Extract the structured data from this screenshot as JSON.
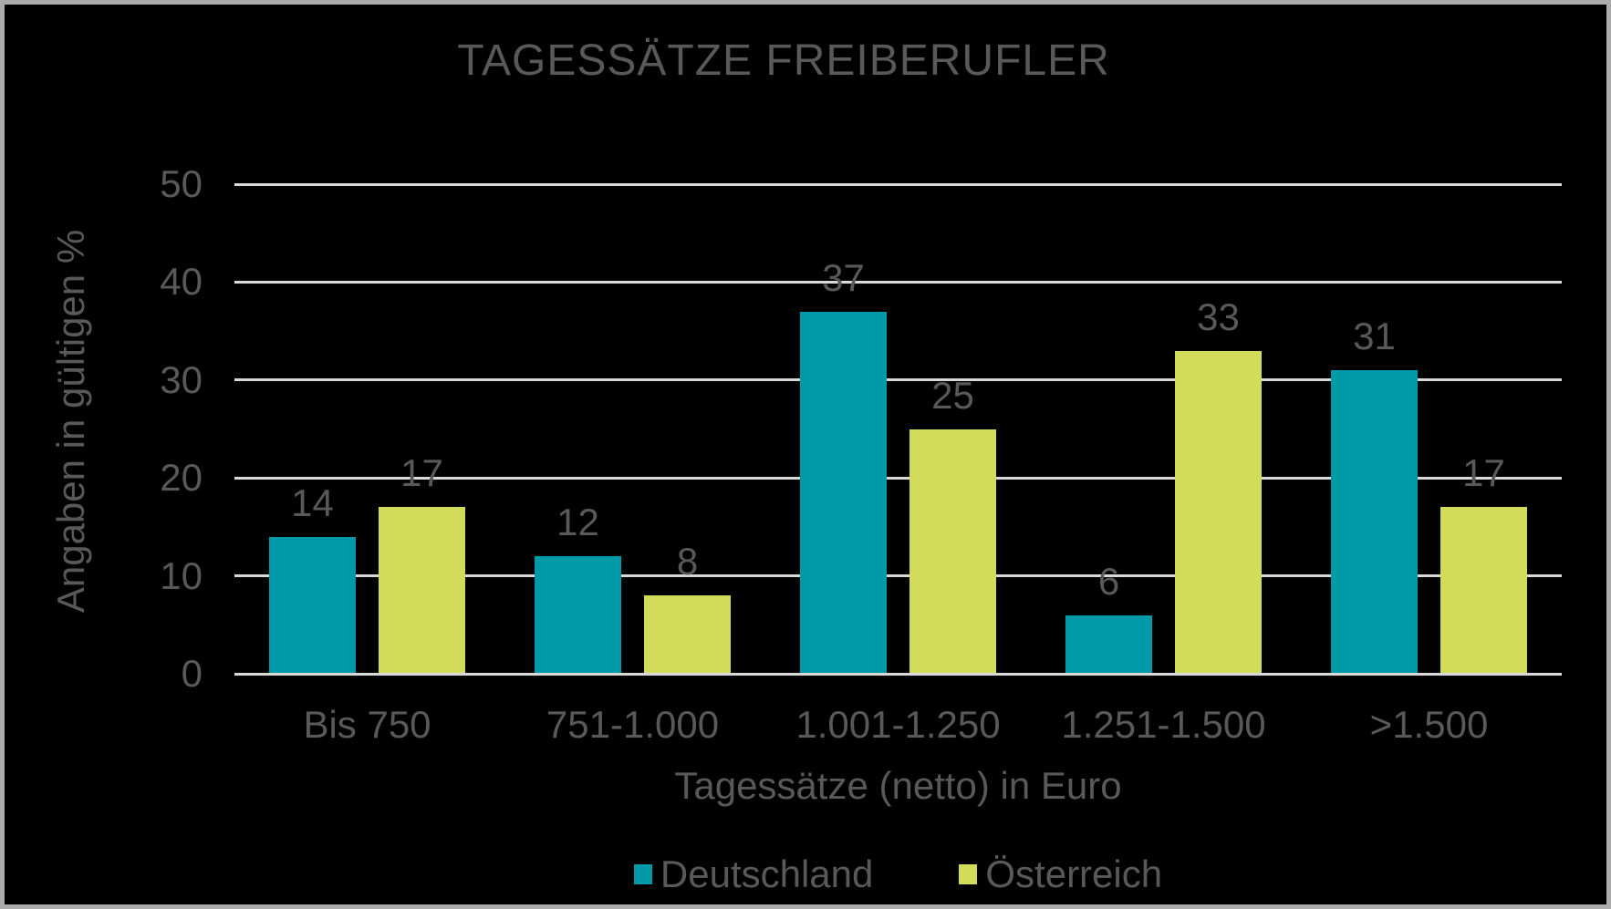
{
  "frame": {
    "background": "#000000",
    "border_color": "#ABABAB"
  },
  "chart_data": {
    "type": "bar",
    "title": "TAGESSÄTZE FREIBERUFLER",
    "categories": [
      "Bis 750",
      "751-1.000",
      "1.001-1.250",
      "1.251-1.500",
      ">1.500"
    ],
    "series": [
      {
        "name": "Deutschland",
        "color": "#0099A8",
        "values": [
          14,
          12,
          37,
          6,
          31
        ]
      },
      {
        "name": "Österreich",
        "color": "#D3DB5B",
        "values": [
          17,
          8,
          25,
          33,
          17
        ]
      }
    ],
    "xlabel": "Tagessätze (netto) in Euro",
    "ylabel": "Angaben in gültigen %",
    "ylim": [
      0,
      50
    ],
    "yticks": [
      0,
      10,
      20,
      30,
      40,
      50
    ],
    "grid": true,
    "value_labels": true,
    "legend_position": "bottom",
    "gridline_color": "#D9D9D9",
    "text_color": "#595959"
  }
}
